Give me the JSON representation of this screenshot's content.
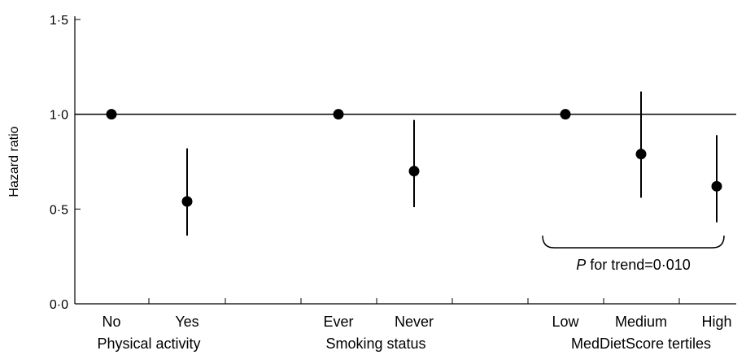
{
  "chart_data": {
    "type": "scatter",
    "ylabel": "Hazard ratio",
    "ylim": [
      0,
      1.5
    ],
    "yticks": [
      "0·0",
      "0·5",
      "1·0",
      "1·5"
    ],
    "reference_line": 1.0,
    "groups": [
      {
        "label": "Physical activity",
        "categories": [
          "No",
          "Yes"
        ]
      },
      {
        "label": "Smoking status",
        "categories": [
          "Ever",
          "Never"
        ]
      },
      {
        "label": "MedDietScore tertiles",
        "categories": [
          "Low",
          "Medium",
          "High"
        ]
      }
    ],
    "points": [
      {
        "category": "No",
        "hr": 1.0,
        "ci": [
          1.0,
          1.0
        ]
      },
      {
        "category": "Yes",
        "hr": 0.54,
        "ci": [
          0.36,
          0.82
        ]
      },
      {
        "category": "Ever",
        "hr": 1.0,
        "ci": [
          1.0,
          1.0
        ]
      },
      {
        "category": "Never",
        "hr": 0.7,
        "ci": [
          0.51,
          0.97
        ]
      },
      {
        "category": "Low",
        "hr": 1.0,
        "ci": [
          1.0,
          1.0
        ]
      },
      {
        "category": "Medium",
        "hr": 0.79,
        "ci": [
          0.56,
          1.12
        ]
      },
      {
        "category": "High",
        "hr": 0.62,
        "ci": [
          0.43,
          0.89
        ]
      }
    ],
    "annotation": {
      "p_label": "P",
      "text": " for trend=0·010"
    }
  }
}
